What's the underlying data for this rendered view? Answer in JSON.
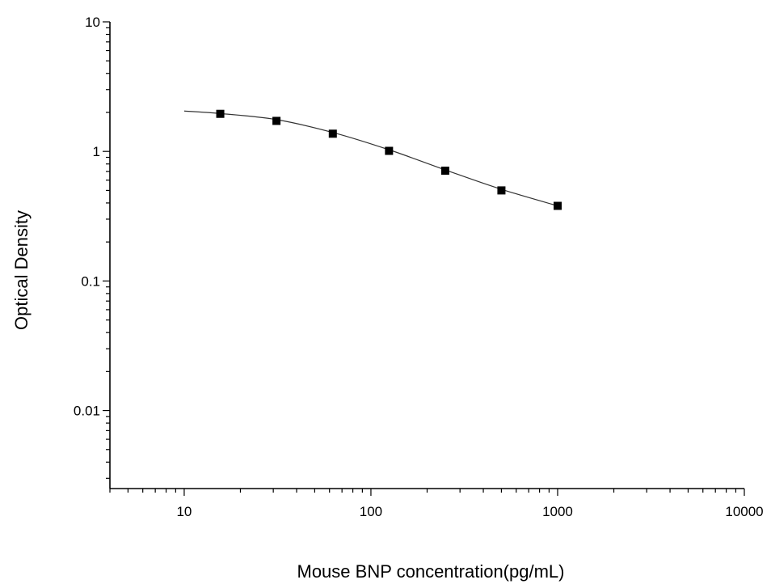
{
  "chart_data": {
    "type": "scatter",
    "title": "",
    "xlabel": "Mouse BNP concentration(pg/mL)",
    "ylabel": "Optical Density",
    "x_scale": "log",
    "y_scale": "log",
    "xlim": [
      4,
      10000
    ],
    "ylim": [
      0.0025,
      10
    ],
    "x_ticks": [
      {
        "value": 10,
        "label": "10"
      },
      {
        "value": 100,
        "label": "100"
      },
      {
        "value": 1000,
        "label": "1000"
      },
      {
        "value": 10000,
        "label": "10000"
      }
    ],
    "y_ticks": [
      {
        "value": 0.01,
        "label": "0.01"
      },
      {
        "value": 0.1,
        "label": "0.1"
      },
      {
        "value": 1,
        "label": "1"
      },
      {
        "value": 10,
        "label": "10"
      }
    ],
    "grid": false,
    "legend": "none",
    "series": [
      {
        "marker": "square",
        "color": "#000000",
        "x": [
          15.6,
          31.2,
          62.5,
          125,
          250,
          500,
          1000
        ],
        "y": [
          1.95,
          1.72,
          1.37,
          1.01,
          0.71,
          0.5,
          0.38
        ]
      }
    ],
    "fit_curve": {
      "color": "#333333",
      "x": [
        10,
        15.6,
        31.2,
        62.5,
        125,
        250,
        500,
        1000
      ],
      "y": [
        2.05,
        1.96,
        1.76,
        1.4,
        1.03,
        0.72,
        0.51,
        0.38
      ]
    }
  }
}
